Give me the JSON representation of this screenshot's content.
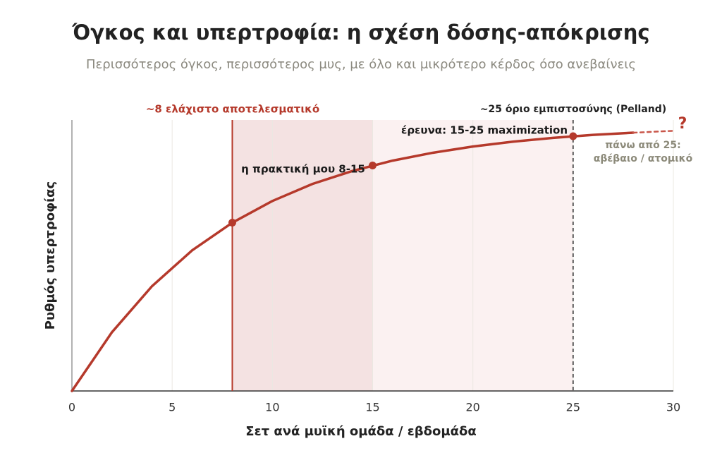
{
  "chart_data": {
    "type": "line",
    "title": "Όγκος και υπερτροφία: η σχέση δόσης-απόκρισης",
    "subtitle": "Περισσότερος όγκος, περισσότερος μυς, με όλο και μικρότερο κέρδος όσο ανεβαίνεις",
    "x_label": "Σετ ανά μυϊκή ομάδα / εβδομάδα",
    "y_label": "Ρυθμός υπερτροφίας",
    "xlim": [
      0,
      30
    ],
    "xticks": [
      0,
      5,
      10,
      15,
      20,
      25,
      30
    ],
    "ylim": [
      0,
      100
    ],
    "grid": true,
    "bands": [
      {
        "from": 8,
        "to": 15,
        "color": "#f4e2e2",
        "label": "η πρακτική μου 8-15"
      },
      {
        "from": 15,
        "to": 25,
        "color": "#fbf1f1",
        "label": "έρευνα: 15-25 maximization"
      }
    ],
    "vlines": [
      {
        "x": 8,
        "color": "#b5392b",
        "style": "solid",
        "label": "~8 ελάχιστο αποτελεσματικό"
      },
      {
        "x": 25,
        "color": "#333333",
        "style": "dashed",
        "label": "~25 όριο εμπιστοσύνης (Pelland)"
      }
    ],
    "series": [
      {
        "color": "#b5392b",
        "style": "solid",
        "x": [
          0,
          2,
          4,
          6,
          8,
          10,
          12,
          14,
          16,
          18,
          20,
          22,
          24,
          26,
          28
        ],
        "values": [
          0,
          21.7,
          38.7,
          51.9,
          62.1,
          70.1,
          76.4,
          81.2,
          85.0,
          87.9,
          90.2,
          92.0,
          93.4,
          94.5,
          95.3
        ]
      },
      {
        "color": "#c9564a",
        "style": "dashed",
        "x": [
          28,
          30
        ],
        "values": [
          95.3,
          96.0
        ]
      },
      {
        "color": "#b5392b",
        "style": "points",
        "x": [
          8,
          15,
          25
        ],
        "values": [
          62.1,
          83.2,
          94.0
        ]
      }
    ],
    "annotations": [
      "?",
      "πάνω από 25:",
      "αβέβαιο / ατομικό"
    ]
  }
}
